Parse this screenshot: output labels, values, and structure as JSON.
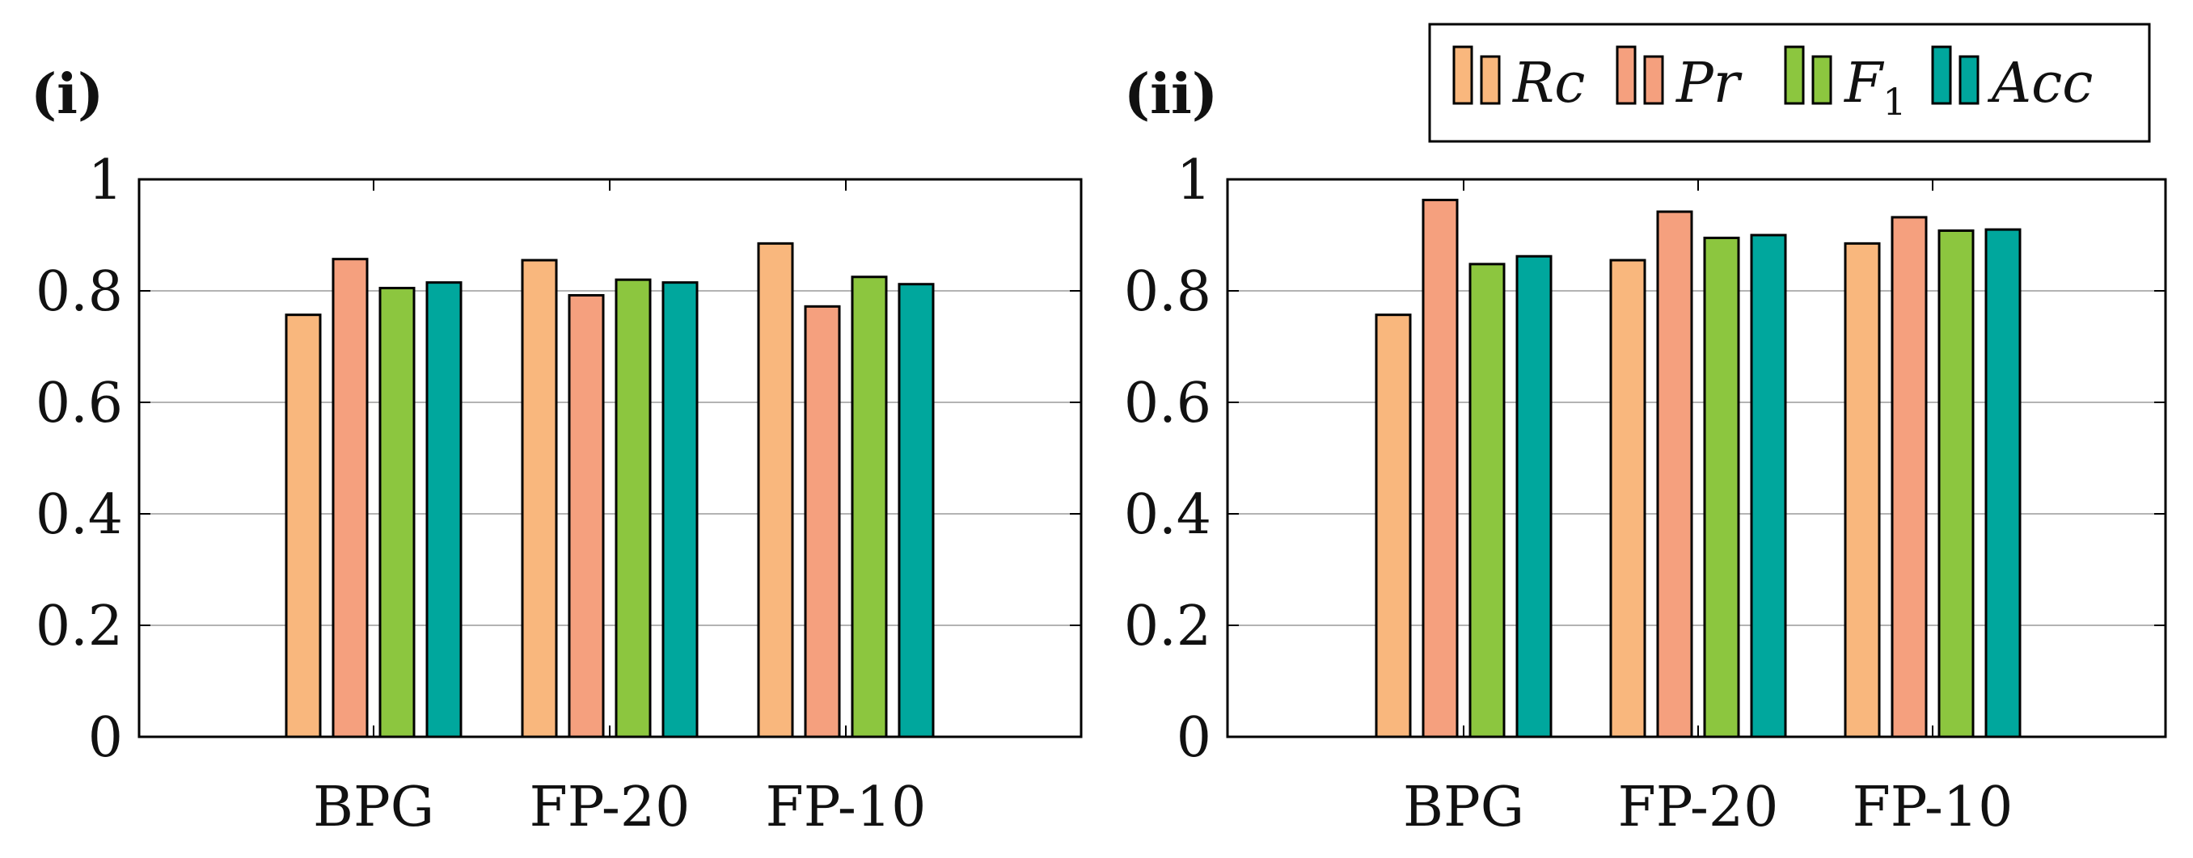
{
  "chart_data": [
    {
      "type": "bar",
      "panel_label": "(i)",
      "categories": [
        "BPG",
        "FP-20",
        "FP-10"
      ],
      "ylim": [
        0,
        1
      ],
      "yticks": [
        "0",
        "0.2",
        "0.4",
        "0.6",
        "0.8",
        "1"
      ],
      "grid": true,
      "series": [
        {
          "name": "Rc",
          "values": [
            0.757,
            0.855,
            0.885
          ]
        },
        {
          "name": "Pr",
          "values": [
            0.857,
            0.792,
            0.772
          ]
        },
        {
          "name": "F1",
          "values": [
            0.805,
            0.82,
            0.825
          ]
        },
        {
          "name": "Acc",
          "values": [
            0.815,
            0.815,
            0.812
          ]
        }
      ]
    },
    {
      "type": "bar",
      "panel_label": "(ii)",
      "categories": [
        "BPG",
        "FP-20",
        "FP-10"
      ],
      "ylim": [
        0,
        1
      ],
      "yticks": [
        "0",
        "0.2",
        "0.4",
        "0.6",
        "0.8",
        "1"
      ],
      "grid": true,
      "series": [
        {
          "name": "Rc",
          "values": [
            0.757,
            0.855,
            0.885
          ]
        },
        {
          "name": "Pr",
          "values": [
            0.963,
            0.942,
            0.932
          ]
        },
        {
          "name": "F1",
          "values": [
            0.848,
            0.895,
            0.908
          ]
        },
        {
          "name": "Acc",
          "values": [
            0.862,
            0.9,
            0.91
          ]
        }
      ]
    }
  ],
  "legend": {
    "placement": "top-right",
    "entries": [
      {
        "base": "Rc",
        "sub": "",
        "color": "#F9B77D"
      },
      {
        "base": "Pr",
        "sub": "",
        "color": "#F5A07E"
      },
      {
        "base": "F",
        "sub": "1",
        "color": "#8CC63F"
      },
      {
        "base": "Acc",
        "sub": "",
        "color": "#00A79D"
      }
    ]
  },
  "colors": {
    "Rc": "#F9B77D",
    "Pr": "#F5A07E",
    "F1": "#8CC63F",
    "Acc": "#00A79D",
    "grid": "#b3b3b3",
    "axis": "#000000"
  }
}
